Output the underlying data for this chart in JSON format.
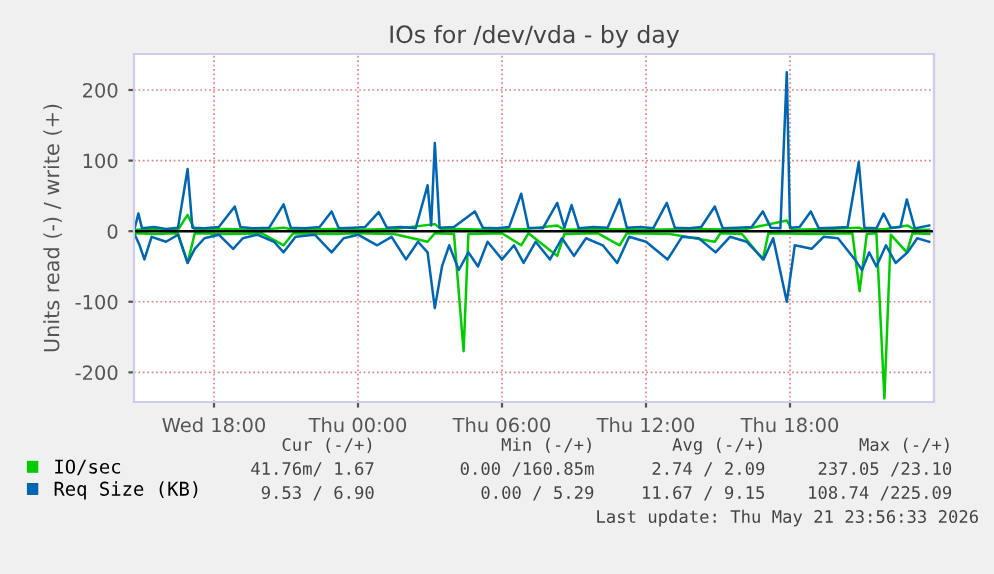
{
  "chart_data": {
    "type": "line",
    "title": "IOs for /dev/vda - by day",
    "ylabel": "Units read (-) / write (+)",
    "xlim": [
      "2026-05-20T14:40",
      "2026-05-22T00:00"
    ],
    "xticks": [
      {
        "value": "2026-05-20T18:00",
        "label": "Wed 18:00"
      },
      {
        "value": "2026-05-21T00:00",
        "label": "Thu 00:00"
      },
      {
        "value": "2026-05-21T06:00",
        "label": "Thu 06:00"
      },
      {
        "value": "2026-05-21T12:00",
        "label": "Thu 12:00"
      },
      {
        "value": "2026-05-21T18:00",
        "label": "Thu 18:00"
      }
    ],
    "ylim": [
      -242,
      251
    ],
    "yticks": [
      -200,
      -100,
      0,
      100,
      200
    ],
    "grid": true,
    "legend": "bottom left",
    "marker": "none",
    "line_style": "solid",
    "ref_lines": [
      {
        "axis": "y",
        "value": 0,
        "color": "#000000"
      }
    ],
    "series": [
      {
        "name": "IO/sec",
        "color": "#00cc00",
        "x": [
          "2026-05-20T14:42",
          "2026-05-20T15:30",
          "2026-05-20T16:30",
          "2026-05-20T16:54",
          "2026-05-20T17:12",
          "2026-05-20T18:30",
          "2026-05-20T20:00",
          "2026-05-20T20:54",
          "2026-05-20T21:18",
          "2026-05-20T23:00",
          "2026-05-21T00:00",
          "2026-05-21T01:30",
          "2026-05-21T03:12",
          "2026-05-21T03:30",
          "2026-05-21T04:00",
          "2026-05-21T05:30",
          "2026-05-21T07:00",
          "2026-05-21T08:18",
          "2026-05-21T08:36",
          "2026-05-21T10:00",
          "2026-05-21T12:00",
          "2026-05-21T14:00",
          "2026-05-21T16:00",
          "2026-05-21T17:52",
          "2026-05-21T18:06",
          "2026-05-21T19:30",
          "2026-05-21T20:52",
          "2026-05-21T21:06",
          "2026-05-21T22:00",
          "2026-05-21T22:54",
          "2026-05-21T23:12",
          "2026-05-21T23:48"
        ],
        "values": [
          2,
          3,
          2,
          23,
          2,
          3,
          2,
          5,
          2,
          3,
          2,
          3,
          10,
          2,
          3,
          2,
          3,
          8,
          2,
          3,
          2,
          3,
          2,
          15,
          2,
          3,
          5,
          2,
          3,
          8,
          2,
          2
        ]
      },
      {
        "color": "#00cc00",
        "x": [
          "2026-05-20T14:42",
          "2026-05-20T15:30",
          "2026-05-20T16:30",
          "2026-05-20T16:54",
          "2026-05-20T17:12",
          "2026-05-20T18:30",
          "2026-05-20T20:00",
          "2026-05-20T20:54",
          "2026-05-20T21:18",
          "2026-05-20T23:00",
          "2026-05-21T00:00",
          "2026-05-21T01:30",
          "2026-05-21T02:54",
          "2026-05-21T03:12",
          "2026-05-21T04:00",
          "2026-05-21T04:24",
          "2026-05-21T04:36",
          "2026-05-21T06:00",
          "2026-05-21T06:48",
          "2026-05-21T07:06",
          "2026-05-21T08:18",
          "2026-05-21T08:36",
          "2026-05-21T10:00",
          "2026-05-21T10:54",
          "2026-05-21T11:12",
          "2026-05-21T13:00",
          "2026-05-21T14:52",
          "2026-05-21T15:06",
          "2026-05-21T16:00",
          "2026-05-21T16:52",
          "2026-05-21T17:06",
          "2026-05-21T19:00",
          "2026-05-21T20:36",
          "2026-05-21T20:54",
          "2026-05-21T21:12",
          "2026-05-21T21:36",
          "2026-05-21T21:56",
          "2026-05-21T22:12",
          "2026-05-21T22:52",
          "2026-05-21T23:06",
          "2026-05-21T23:48"
        ],
        "values": [
          -3,
          -4,
          -3,
          -45,
          -3,
          -4,
          -3,
          -20,
          -3,
          -4,
          -3,
          -4,
          -15,
          -3,
          -4,
          -170,
          -4,
          -3,
          -20,
          -3,
          -35,
          -4,
          -3,
          -20,
          -3,
          -4,
          -15,
          -3,
          -4,
          -40,
          -3,
          -4,
          -3,
          -85,
          -4,
          -3,
          -237,
          -5,
          -30,
          -3,
          -4
        ]
      },
      {
        "name": "Req Size (KB)",
        "color": "#0066b3",
        "x": [
          "2026-05-20T14:42",
          "2026-05-20T14:51",
          "2026-05-20T15:00",
          "2026-05-20T15:30",
          "2026-05-20T16:00",
          "2026-05-20T16:30",
          "2026-05-20T16:54",
          "2026-05-20T17:06",
          "2026-05-20T17:36",
          "2026-05-20T18:12",
          "2026-05-20T18:52",
          "2026-05-20T19:06",
          "2026-05-20T19:36",
          "2026-05-20T20:18",
          "2026-05-20T20:54",
          "2026-05-20T21:12",
          "2026-05-20T21:48",
          "2026-05-20T22:24",
          "2026-05-20T22:54",
          "2026-05-20T23:12",
          "2026-05-20T23:48",
          "2026-05-21T00:18",
          "2026-05-21T00:52",
          "2026-05-21T01:12",
          "2026-05-21T01:48",
          "2026-05-21T02:24",
          "2026-05-21T02:54",
          "2026-05-21T03:03",
          "2026-05-21T03:12",
          "2026-05-21T03:24",
          "2026-05-21T04:00",
          "2026-05-21T04:52",
          "2026-05-21T05:12",
          "2026-05-21T05:48",
          "2026-05-21T06:18",
          "2026-05-21T06:48",
          "2026-05-21T07:06",
          "2026-05-21T07:42",
          "2026-05-21T08:18",
          "2026-05-21T08:36",
          "2026-05-21T08:54",
          "2026-05-21T09:12",
          "2026-05-21T09:48",
          "2026-05-21T10:24",
          "2026-05-21T10:54",
          "2026-05-21T11:12",
          "2026-05-21T11:48",
          "2026-05-21T12:18",
          "2026-05-21T12:52",
          "2026-05-21T13:12",
          "2026-05-21T13:48",
          "2026-05-21T14:18",
          "2026-05-21T14:52",
          "2026-05-21T15:12",
          "2026-05-21T15:48",
          "2026-05-21T16:24",
          "2026-05-21T16:52",
          "2026-05-21T17:12",
          "2026-05-21T17:36",
          "2026-05-21T17:52",
          "2026-05-21T18:00",
          "2026-05-21T18:24",
          "2026-05-21T18:52",
          "2026-05-21T19:12",
          "2026-05-21T19:48",
          "2026-05-21T20:24",
          "2026-05-21T20:52",
          "2026-05-21T21:06",
          "2026-05-21T21:36",
          "2026-05-21T21:54",
          "2026-05-21T22:12",
          "2026-05-21T22:36",
          "2026-05-21T22:52",
          "2026-05-21T23:12",
          "2026-05-21T23:48"
        ],
        "values": [
          5,
          25,
          4,
          6,
          3,
          5,
          88,
          5,
          4,
          6,
          35,
          6,
          4,
          5,
          38,
          5,
          4,
          6,
          28,
          4,
          5,
          6,
          27,
          5,
          6,
          4,
          65,
          8,
          125,
          5,
          6,
          28,
          5,
          4,
          6,
          53,
          5,
          4,
          40,
          5,
          37,
          4,
          6,
          5,
          45,
          5,
          6,
          4,
          40,
          5,
          4,
          6,
          35,
          4,
          5,
          6,
          28,
          5,
          4,
          225,
          5,
          6,
          28,
          4,
          5,
          6,
          98,
          5,
          4,
          25,
          5,
          6,
          45,
          4,
          8
        ]
      },
      {
        "color": "#0066b3",
        "x": [
          "2026-05-20T14:42",
          "2026-05-20T14:54",
          "2026-05-20T15:06",
          "2026-05-20T15:24",
          "2026-05-20T16:00",
          "2026-05-20T16:30",
          "2026-05-20T16:54",
          "2026-05-20T17:12",
          "2026-05-20T17:36",
          "2026-05-20T18:12",
          "2026-05-20T18:48",
          "2026-05-20T19:12",
          "2026-05-20T19:48",
          "2026-05-20T20:30",
          "2026-05-20T20:54",
          "2026-05-20T21:24",
          "2026-05-20T22:12",
          "2026-05-20T22:54",
          "2026-05-20T23:24",
          "2026-05-21T00:00",
          "2026-05-21T00:48",
          "2026-05-21T01:24",
          "2026-05-21T02:00",
          "2026-05-21T02:30",
          "2026-05-21T02:54",
          "2026-05-21T03:12",
          "2026-05-21T03:30",
          "2026-05-21T03:48",
          "2026-05-21T04:12",
          "2026-05-21T04:36",
          "2026-05-21T05:00",
          "2026-05-21T05:24",
          "2026-05-21T06:00",
          "2026-05-21T06:30",
          "2026-05-21T06:54",
          "2026-05-21T07:24",
          "2026-05-21T08:00",
          "2026-05-21T08:30",
          "2026-05-21T09:00",
          "2026-05-21T09:30",
          "2026-05-21T10:12",
          "2026-05-21T10:48",
          "2026-05-21T11:18",
          "2026-05-21T12:00",
          "2026-05-21T12:54",
          "2026-05-21T13:30",
          "2026-05-21T14:12",
          "2026-05-21T14:54",
          "2026-05-21T15:30",
          "2026-05-21T16:12",
          "2026-05-21T16:54",
          "2026-05-21T17:18",
          "2026-05-21T17:52",
          "2026-05-21T18:12",
          "2026-05-21T18:54",
          "2026-05-21T19:24",
          "2026-05-21T20:00",
          "2026-05-21T20:42",
          "2026-05-21T21:00",
          "2026-05-21T21:18",
          "2026-05-21T21:36",
          "2026-05-21T22:00",
          "2026-05-21T22:24",
          "2026-05-21T22:54",
          "2026-05-21T23:18",
          "2026-05-21T23:48"
        ],
        "values": [
          -5,
          -20,
          -40,
          -8,
          -15,
          -5,
          -45,
          -25,
          -10,
          -5,
          -25,
          -10,
          -5,
          -15,
          -30,
          -8,
          -5,
          -30,
          -10,
          -5,
          -20,
          -8,
          -40,
          -15,
          -30,
          -109,
          -50,
          -20,
          -55,
          -30,
          -50,
          -15,
          -40,
          -20,
          -45,
          -15,
          -40,
          -10,
          -35,
          -10,
          -20,
          -45,
          -8,
          -15,
          -40,
          -8,
          -10,
          -30,
          -8,
          -15,
          -40,
          -10,
          -100,
          -20,
          -25,
          -8,
          -10,
          -40,
          -55,
          -30,
          -50,
          -20,
          -45,
          -30,
          -10,
          -15
        ]
      }
    ],
    "annotations": [
      "Cur (-/+)",
      "Min (-/+)",
      "Avg (-/+)",
      "Max (-/+)",
      "41.76m/ 1.67",
      "0.00 /160.85m",
      "2.74 / 2.09",
      "237.05 /23.10",
      "9.53 / 6.90",
      "0.00 / 5.29",
      "11.67 / 9.15",
      "108.74 /225.09",
      "Last update: Thu May 21 23:56:33 2026"
    ]
  }
}
